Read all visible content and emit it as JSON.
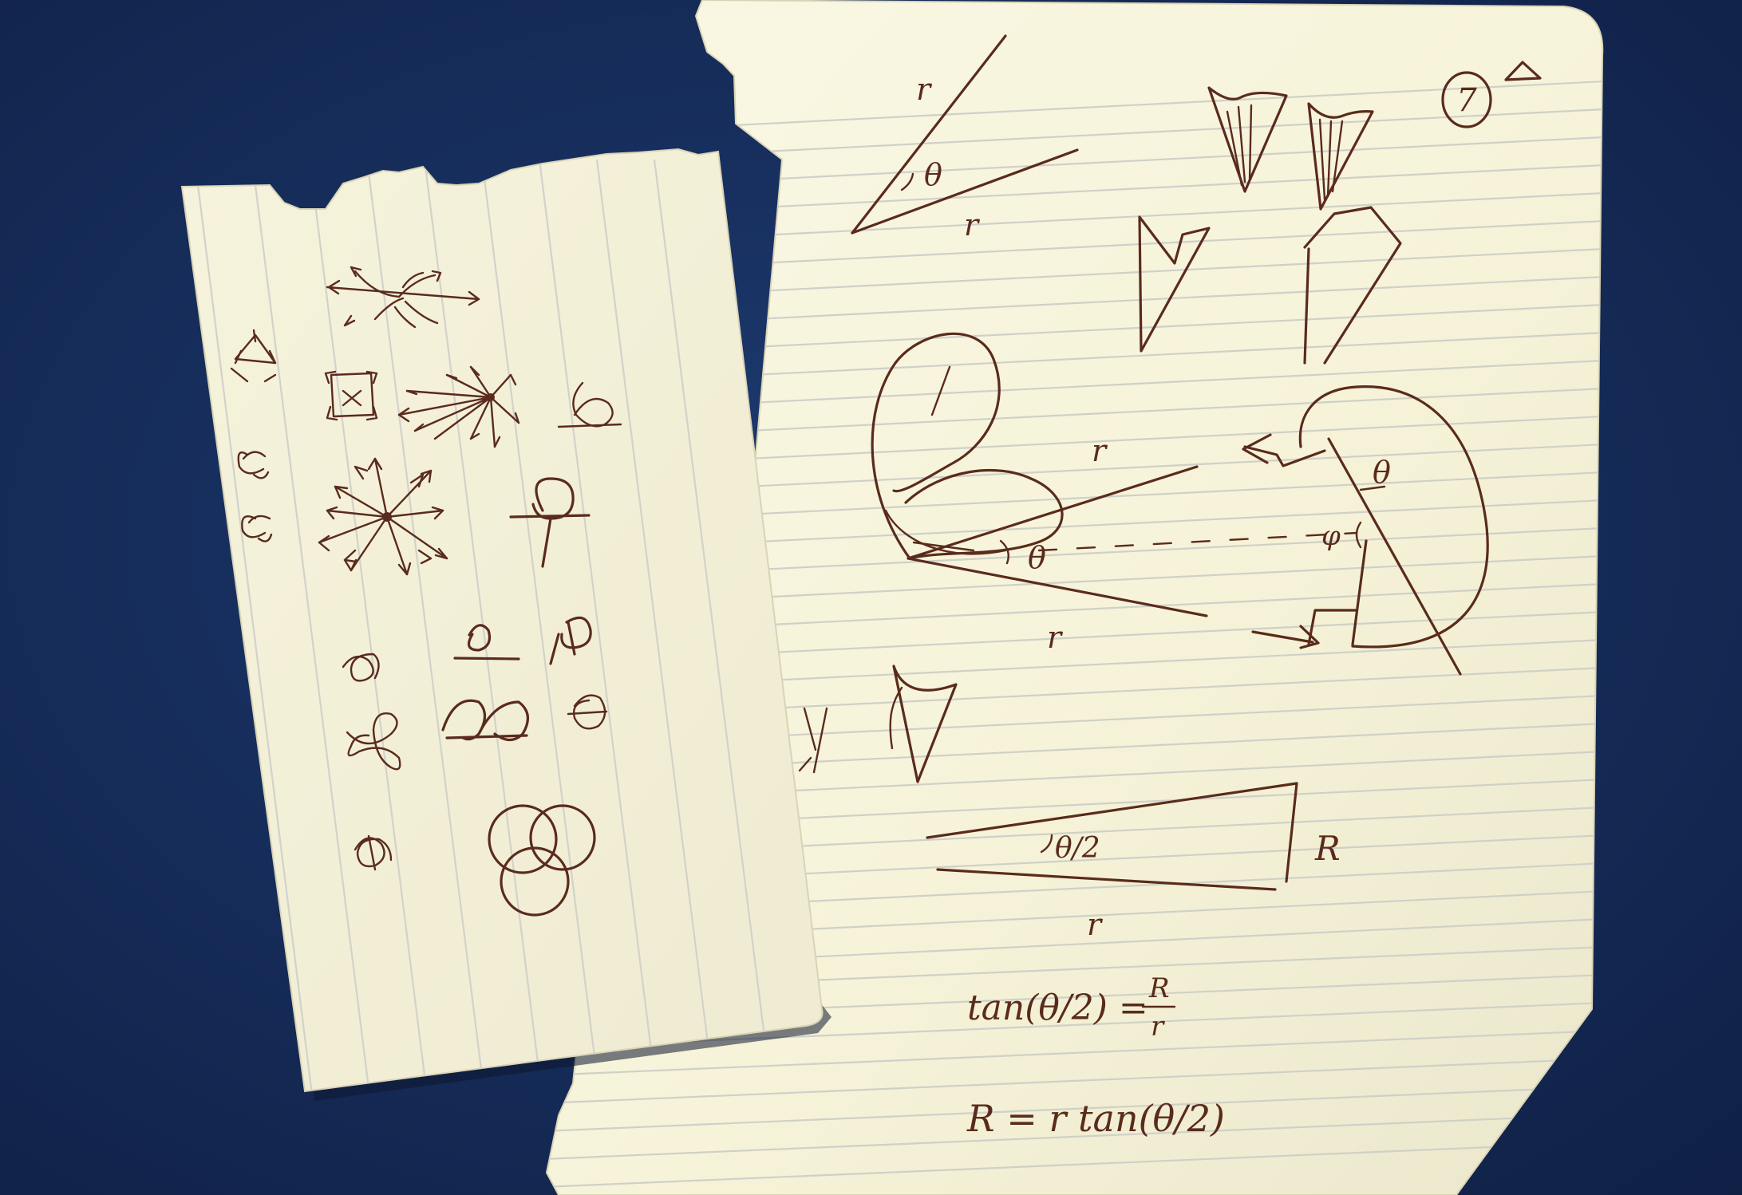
{
  "colors": {
    "background": "#152a55",
    "paper": "#f7f3dd",
    "paper_shadow": "#e4dfc4",
    "rule_line": "#cfd0c8",
    "ink": "#5a2b1c"
  },
  "right_sheet": {
    "page_number": "7",
    "labels": {
      "top_r_upper": "r",
      "top_theta": "θ",
      "top_r_lower": "r",
      "mid_r_upper": "r",
      "mid_theta": "θ",
      "mid_r_lower": "r",
      "right_theta": "θ",
      "right_phi": "φ",
      "tri_half_angle": "θ/2",
      "tri_R": "R",
      "tri_r": "r"
    },
    "equations": {
      "eq1_lhs": "tan(θ/2) =",
      "eq1_num": "R",
      "eq1_den": "r",
      "eq2": "R = r tan(θ/2)"
    }
  }
}
